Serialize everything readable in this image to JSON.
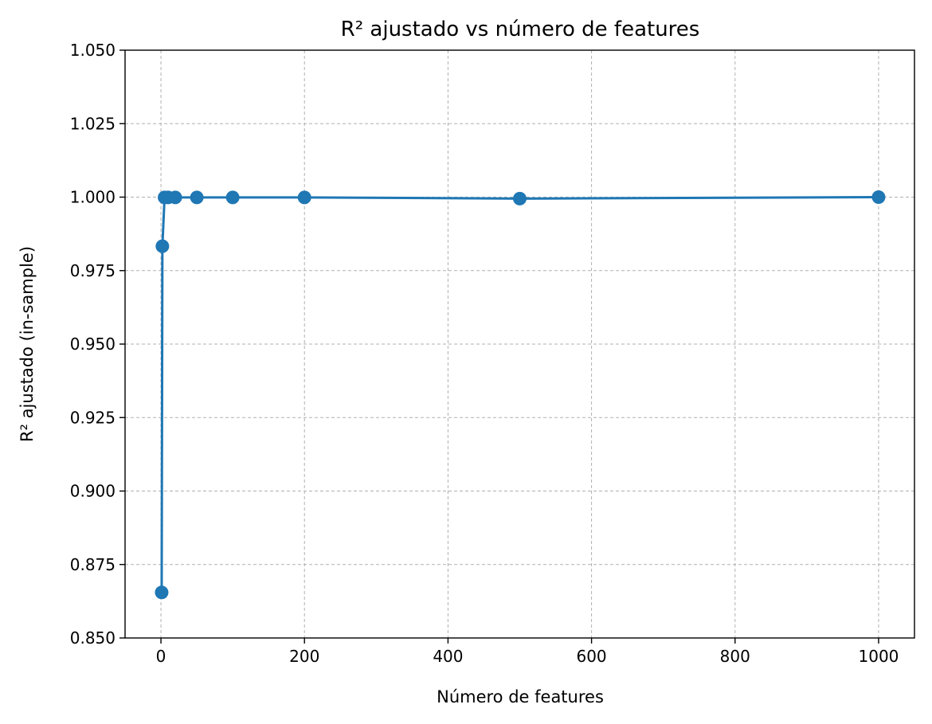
{
  "chart_data": {
    "type": "line",
    "title": "R² ajustado vs número de features",
    "xlabel": "Número de features",
    "ylabel": "R² ajustado (in-sample)",
    "xlim": [
      -50,
      1050
    ],
    "ylim": [
      0.85,
      1.05
    ],
    "x_ticks": [
      0,
      200,
      400,
      600,
      800,
      1000
    ],
    "x_tick_labels": [
      "0",
      "200",
      "400",
      "600",
      "800",
      "1000"
    ],
    "y_ticks": [
      0.85,
      0.875,
      0.9,
      0.925,
      0.95,
      0.975,
      1.0,
      1.025,
      1.05
    ],
    "y_tick_labels": [
      "0.850",
      "0.875",
      "0.900",
      "0.925",
      "0.950",
      "0.975",
      "1.000",
      "1.025",
      "1.050"
    ],
    "grid": true,
    "series": [
      {
        "color": "#1f77b4",
        "marker": "circle",
        "x": [
          1,
          2,
          5,
          10,
          20,
          50,
          100,
          200,
          500,
          1000
        ],
        "y": [
          0.8655,
          0.9833,
          0.9999,
          0.9999,
          0.9999,
          0.9999,
          0.9999,
          0.9999,
          0.9995,
          1.0
        ]
      }
    ]
  }
}
